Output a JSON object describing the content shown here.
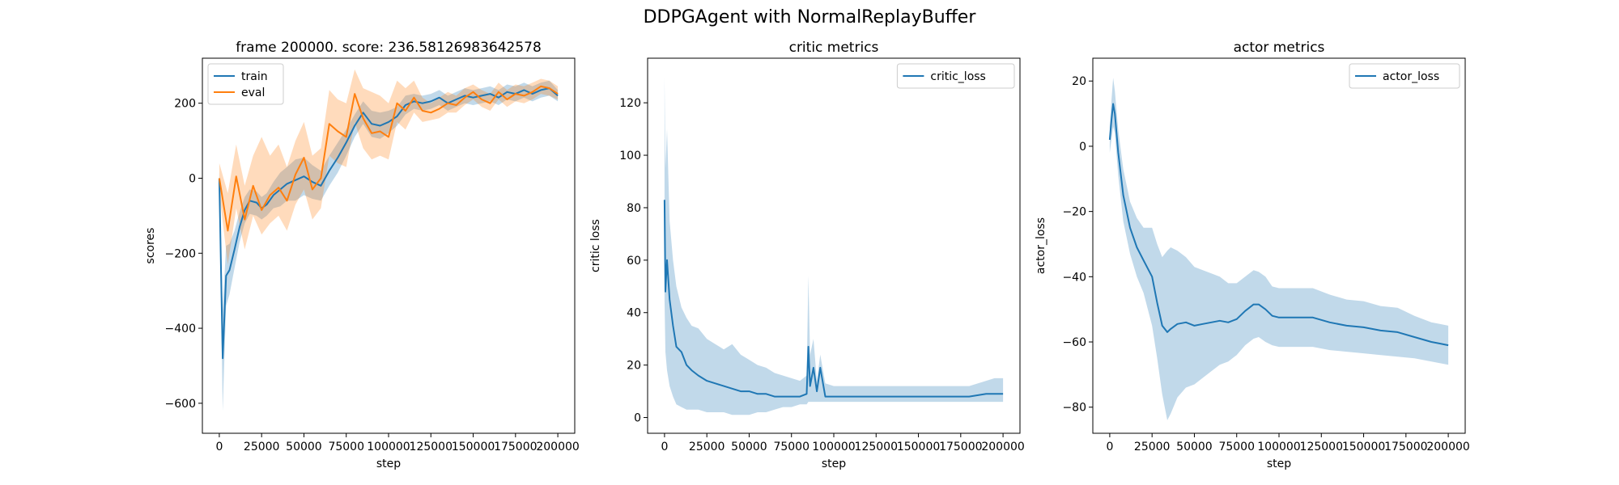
{
  "figure_title": "DDPGAgent with NormalReplayBuffer",
  "colors": {
    "blue": "#1f77b4",
    "orange": "#ff7f0e"
  },
  "chart_data": [
    {
      "type": "line",
      "title": "frame 200000. score: 236.58126983642578",
      "xlabel": "step",
      "ylabel": "scores",
      "xlim": [
        -10000,
        210000
      ],
      "ylim": [
        -680,
        320
      ],
      "xticks": [
        0,
        25000,
        50000,
        75000,
        100000,
        125000,
        150000,
        175000,
        200000
      ],
      "yticks": [
        -600,
        -400,
        -200,
        0,
        200
      ],
      "legend": "top-left",
      "series": [
        {
          "name": "train",
          "color": "#1f77b4",
          "x": [
            0,
            2000,
            4000,
            6000,
            9000,
            12000,
            15000,
            18000,
            22000,
            25000,
            28000,
            32000,
            36000,
            40000,
            45000,
            50000,
            55000,
            60000,
            65000,
            70000,
            75000,
            80000,
            85000,
            90000,
            95000,
            100000,
            105000,
            110000,
            115000,
            120000,
            125000,
            130000,
            135000,
            140000,
            145000,
            150000,
            155000,
            160000,
            165000,
            170000,
            175000,
            180000,
            185000,
            190000,
            195000,
            200000
          ],
          "y": [
            0,
            -480,
            -260,
            -245,
            -190,
            -130,
            -85,
            -60,
            -65,
            -80,
            -70,
            -45,
            -30,
            -15,
            -5,
            5,
            -10,
            -20,
            20,
            55,
            95,
            140,
            175,
            145,
            140,
            150,
            165,
            195,
            205,
            200,
            205,
            215,
            200,
            210,
            220,
            215,
            220,
            225,
            215,
            230,
            225,
            235,
            225,
            235,
            240,
            220
          ],
          "lower": [
            -20,
            -620,
            -340,
            -310,
            -240,
            -170,
            -120,
            -95,
            -100,
            -110,
            -100,
            -80,
            -75,
            -60,
            -60,
            -45,
            -55,
            -60,
            -20,
            15,
            60,
            110,
            145,
            110,
            105,
            120,
            140,
            170,
            185,
            180,
            185,
            195,
            180,
            190,
            200,
            195,
            200,
            205,
            195,
            210,
            205,
            215,
            205,
            215,
            220,
            205
          ],
          "upper": [
            20,
            -350,
            -180,
            -175,
            -140,
            -90,
            -50,
            -30,
            -35,
            -50,
            -40,
            -10,
            15,
            30,
            50,
            55,
            35,
            20,
            60,
            95,
            130,
            170,
            205,
            180,
            175,
            180,
            190,
            220,
            225,
            220,
            225,
            235,
            220,
            230,
            240,
            235,
            240,
            245,
            235,
            250,
            245,
            255,
            245,
            255,
            260,
            235
          ]
        },
        {
          "name": "eval",
          "color": "#ff7f0e",
          "x": [
            0,
            5000,
            10000,
            15000,
            20000,
            25000,
            30000,
            35000,
            40000,
            45000,
            50000,
            55000,
            60000,
            65000,
            70000,
            75000,
            80000,
            85000,
            90000,
            95000,
            100000,
            105000,
            110000,
            115000,
            120000,
            125000,
            130000,
            135000,
            140000,
            145000,
            150000,
            155000,
            160000,
            165000,
            170000,
            175000,
            180000,
            185000,
            190000,
            195000,
            200000
          ],
          "y": [
            0,
            -140,
            5,
            -110,
            -20,
            -85,
            -45,
            -25,
            -60,
            10,
            55,
            -30,
            0,
            145,
            125,
            110,
            225,
            160,
            120,
            125,
            110,
            200,
            180,
            215,
            180,
            175,
            185,
            200,
            195,
            215,
            230,
            210,
            200,
            230,
            210,
            225,
            220,
            230,
            245,
            240,
            225
          ],
          "lower": [
            -40,
            -230,
            -80,
            -190,
            -100,
            -150,
            -120,
            -100,
            -140,
            -70,
            -30,
            -110,
            -80,
            60,
            40,
            30,
            150,
            80,
            50,
            60,
            50,
            150,
            130,
            175,
            150,
            155,
            160,
            175,
            175,
            195,
            210,
            190,
            180,
            210,
            190,
            205,
            200,
            210,
            225,
            220,
            210
          ],
          "upper": [
            40,
            -40,
            90,
            -20,
            60,
            110,
            60,
            90,
            30,
            100,
            150,
            60,
            80,
            235,
            210,
            200,
            290,
            240,
            230,
            220,
            200,
            260,
            240,
            260,
            215,
            200,
            215,
            230,
            220,
            240,
            250,
            235,
            225,
            255,
            235,
            250,
            245,
            255,
            265,
            260,
            245
          ]
        }
      ]
    },
    {
      "type": "line",
      "title": "critic metrics",
      "xlabel": "step",
      "ylabel": "critic loss",
      "xlim": [
        -10000,
        210000
      ],
      "ylim": [
        -6,
        137
      ],
      "xticks": [
        0,
        25000,
        50000,
        75000,
        100000,
        125000,
        150000,
        175000,
        200000
      ],
      "yticks": [
        0,
        20,
        40,
        60,
        80,
        100,
        120
      ],
      "legend": "top-right",
      "series": [
        {
          "name": "critic_loss",
          "color": "#1f77b4",
          "x": [
            0,
            500,
            1500,
            3000,
            5000,
            7000,
            10000,
            13000,
            16000,
            20000,
            25000,
            30000,
            35000,
            40000,
            45000,
            50000,
            55000,
            60000,
            65000,
            70000,
            75000,
            80000,
            84000,
            85000,
            86000,
            88000,
            90000,
            92000,
            95000,
            100000,
            110000,
            120000,
            130000,
            140000,
            150000,
            160000,
            170000,
            180000,
            190000,
            195000,
            200000
          ],
          "y": [
            83,
            48,
            60,
            45,
            35,
            27,
            25,
            20,
            18,
            16,
            14,
            13,
            12,
            11,
            10,
            10,
            9,
            9,
            8,
            8,
            8,
            8,
            9,
            27,
            12,
            19,
            10,
            19,
            8,
            8,
            8,
            8,
            8,
            8,
            8,
            8,
            8,
            8,
            9,
            9,
            9
          ],
          "lower": [
            45,
            25,
            18,
            12,
            8,
            5,
            4,
            3,
            3,
            3,
            2,
            2,
            2,
            1,
            1,
            1,
            2,
            2,
            3,
            4,
            4,
            5,
            5,
            6,
            6,
            6,
            6,
            6,
            6,
            6,
            6,
            6,
            6,
            6,
            6,
            6,
            6,
            6,
            6,
            6,
            6
          ],
          "upper": [
            130,
            95,
            110,
            75,
            60,
            50,
            42,
            38,
            35,
            34,
            30,
            28,
            26,
            28,
            24,
            22,
            20,
            19,
            17,
            16,
            15,
            14,
            16,
            54,
            24,
            30,
            14,
            24,
            13,
            12,
            12,
            12,
            12,
            12,
            12,
            12,
            12,
            12,
            14,
            15,
            15
          ]
        }
      ]
    },
    {
      "type": "line",
      "title": "actor metrics",
      "xlabel": "step",
      "ylabel": "actor_loss",
      "xlim": [
        -10000,
        210000
      ],
      "ylim": [
        -88,
        27
      ],
      "xticks": [
        0,
        25000,
        50000,
        75000,
        100000,
        125000,
        150000,
        175000,
        200000
      ],
      "yticks": [
        -80,
        -60,
        -40,
        -20,
        0,
        20
      ],
      "legend": "top-right",
      "series": [
        {
          "name": "actor_loss",
          "color": "#1f77b4",
          "x": [
            0,
            1000,
            2000,
            3000,
            5000,
            8000,
            12000,
            16000,
            20000,
            25000,
            28000,
            31000,
            34000,
            36000,
            40000,
            45000,
            50000,
            55000,
            60000,
            65000,
            70000,
            75000,
            80000,
            85000,
            88000,
            92000,
            96000,
            100000,
            110000,
            120000,
            130000,
            140000,
            150000,
            160000,
            170000,
            180000,
            190000,
            195000,
            200000
          ],
          "y": [
            2,
            8,
            13,
            10,
            -2,
            -15,
            -25,
            -31,
            -35,
            -40,
            -48,
            -55,
            -57,
            -56,
            -54.5,
            -54,
            -55,
            -54.5,
            -54,
            -53.5,
            -54,
            -53,
            -50.5,
            -48.5,
            -48.5,
            -50,
            -52,
            -52.5,
            -52.5,
            -52.5,
            -54,
            -55,
            -55.5,
            -56.5,
            -57,
            -58.5,
            -60,
            -60.5,
            -61
          ],
          "lower": [
            -2,
            2,
            6,
            4,
            -9,
            -23,
            -33,
            -40,
            -45,
            -55,
            -65,
            -76,
            -84,
            -82,
            -77,
            -74,
            -73,
            -71,
            -69,
            -67,
            -66,
            -64,
            -61,
            -59,
            -58.5,
            -60,
            -61,
            -61.5,
            -61.5,
            -61.5,
            -62.5,
            -63,
            -63.5,
            -64,
            -64.5,
            -65,
            -66,
            -66.5,
            -67
          ],
          "upper": [
            6,
            14,
            21,
            17,
            5,
            -7,
            -17,
            -22,
            -25,
            -25,
            -30,
            -34,
            -32,
            -31,
            -32,
            -34,
            -37,
            -38,
            -39,
            -40,
            -42,
            -42,
            -40,
            -38,
            -38.5,
            -40,
            -43,
            -43.5,
            -43.5,
            -43.5,
            -45.5,
            -47,
            -47.5,
            -49,
            -49.5,
            -52,
            -54,
            -54.5,
            -55
          ]
        }
      ]
    }
  ]
}
